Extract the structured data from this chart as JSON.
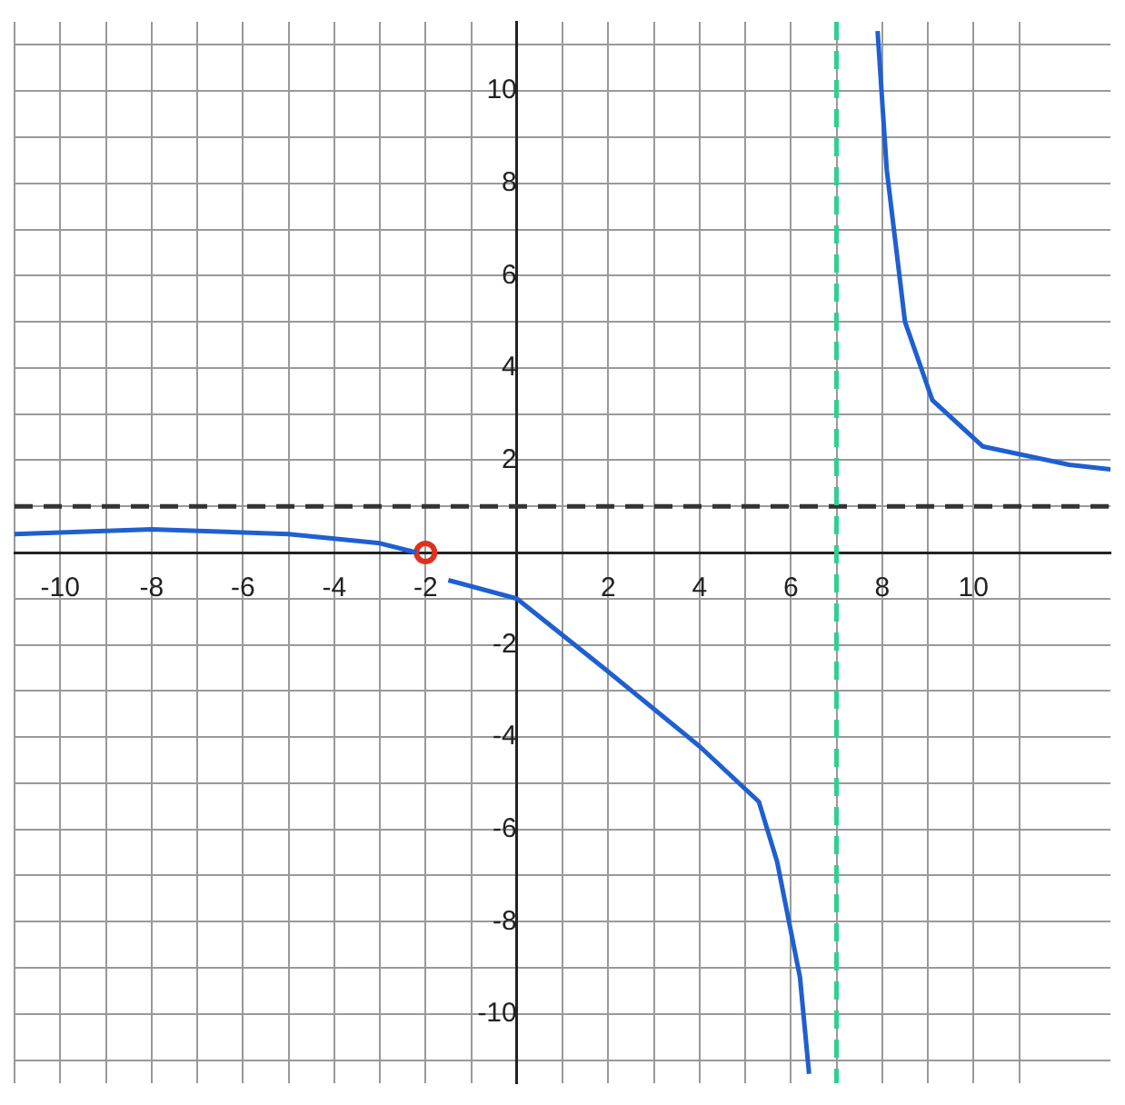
{
  "chart_data": {
    "type": "line",
    "xlim": [
      -11,
      13
    ],
    "ylim": [
      -11.5,
      11.5
    ],
    "xticks": [
      {
        "value": -11,
        "label": null
      },
      -10,
      {
        "value": -9,
        "label": null
      },
      -8,
      {
        "value": -7,
        "label": null
      },
      -6,
      {
        "value": -5,
        "label": null
      },
      -4,
      {
        "value": -3,
        "label": null
      },
      -2,
      {
        "value": -1,
        "label": null
      },
      {
        "value": 0,
        "label": null
      },
      {
        "value": 1,
        "label": null
      },
      2,
      {
        "value": 3,
        "label": null
      },
      4,
      {
        "value": 5,
        "label": null
      },
      6,
      {
        "value": 7,
        "label": null
      },
      8,
      {
        "value": 9,
        "label": null
      },
      10,
      {
        "value": 11,
        "label": null
      }
    ],
    "yticks": [
      {
        "value": -11,
        "label": null
      },
      -10,
      {
        "value": -9,
        "label": null
      },
      -8,
      {
        "value": -7,
        "label": null
      },
      -6,
      {
        "value": -5,
        "label": null
      },
      -4,
      {
        "value": -3,
        "label": null
      },
      -2,
      {
        "value": -1,
        "label": null
      },
      {
        "value": 0,
        "label": null
      },
      {
        "value": 1,
        "label": null
      },
      2,
      {
        "value": 3,
        "label": null
      },
      4,
      {
        "value": 5,
        "label": null
      },
      6,
      {
        "value": 7,
        "label": null
      },
      8,
      {
        "value": 9,
        "label": null
      },
      10,
      {
        "value": 11,
        "label": null
      }
    ],
    "grid": true,
    "legend": false,
    "series": [
      {
        "marker": "none",
        "color": "#1f5fd0",
        "x": [
          -11,
          -8,
          -5,
          -3,
          -2.2
        ],
        "values": [
          0.4,
          0.5,
          0.4,
          0.2,
          0
        ]
      },
      {
        "marker": "none",
        "color": "#1f5fd0",
        "x": [
          -1.5,
          0,
          1.9,
          4,
          5.3,
          5.7,
          6.2,
          6.4
        ],
        "values": [
          -0.6,
          -1,
          -2.5,
          -4.2,
          -5.4,
          -6.7,
          -9.2,
          -11.3
        ]
      },
      {
        "marker": "none",
        "color": "#1f5fd0",
        "x": [
          7.9,
          8.1,
          8.5,
          9.1,
          10.2,
          12.1,
          13
        ],
        "values": [
          11.3,
          8.3,
          5,
          3.3,
          2.3,
          1.9,
          1.8
        ]
      },
      {
        "type": "scatter",
        "marker": "circle",
        "color": "#e03020",
        "x": [
          -2
        ],
        "values": [
          0
        ]
      }
    ],
    "ref_lines": [
      {
        "axis": "y",
        "value": 1,
        "color": "#333333",
        "line_style": "dashed"
      },
      {
        "axis": "x",
        "value": 7,
        "color": "#30d090",
        "line_style": "dashed"
      }
    ]
  }
}
